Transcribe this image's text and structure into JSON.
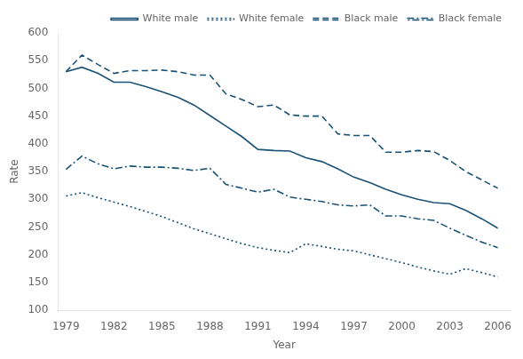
{
  "chart_data": {
    "type": "line",
    "xlabel": "Year",
    "ylabel": "Rate",
    "x": [
      1979,
      1980,
      1981,
      1982,
      1983,
      1984,
      1985,
      1986,
      1987,
      1988,
      1989,
      1990,
      1991,
      1992,
      1993,
      1994,
      1995,
      1996,
      1997,
      1998,
      1999,
      2000,
      2001,
      2002,
      2003,
      2004,
      2005,
      2006
    ],
    "series": [
      {
        "name": "White male",
        "color": "#1a5276",
        "line_style": "solid",
        "values": [
          530,
          538,
          527,
          511,
          511,
          503,
          494,
          484,
          470,
          451,
          432,
          413,
          390,
          388,
          387,
          375,
          368,
          355,
          340,
          330,
          318,
          308,
          300,
          294,
          292,
          280,
          265,
          248
        ]
      },
      {
        "name": "White female",
        "color": "#1a5276",
        "line_style": "dotted",
        "values": [
          306,
          312,
          303,
          295,
          287,
          278,
          269,
          258,
          247,
          238,
          229,
          220,
          213,
          208,
          204,
          220,
          215,
          210,
          207,
          200,
          193,
          186,
          178,
          171,
          165,
          175,
          168,
          160
        ]
      },
      {
        "name": "Black male",
        "color": "#1a5276",
        "line_style": "dashed",
        "values": [
          530,
          560,
          543,
          527,
          532,
          532,
          533,
          530,
          524,
          524,
          490,
          480,
          467,
          470,
          452,
          450,
          450,
          418,
          415,
          415,
          385,
          385,
          388,
          386,
          370,
          350,
          335,
          320
        ]
      },
      {
        "name": "Black female",
        "color": "#1a5276",
        "line_style": "dashdot",
        "values": [
          354,
          378,
          364,
          355,
          360,
          358,
          358,
          356,
          352,
          356,
          327,
          320,
          313,
          318,
          304,
          300,
          296,
          290,
          288,
          290,
          270,
          270,
          265,
          262,
          248,
          235,
          223,
          213
        ]
      }
    ],
    "xlim": [
      1978.5,
      2006.8
    ],
    "xticks": [
      1979,
      1982,
      1985,
      1988,
      1991,
      1994,
      1997,
      2000,
      2003,
      2006
    ],
    "ylim": [
      100,
      600
    ],
    "yticks": [
      100,
      150,
      200,
      250,
      300,
      350,
      400,
      450,
      500,
      550,
      600
    ],
    "grid": false,
    "legend": "upper right"
  }
}
